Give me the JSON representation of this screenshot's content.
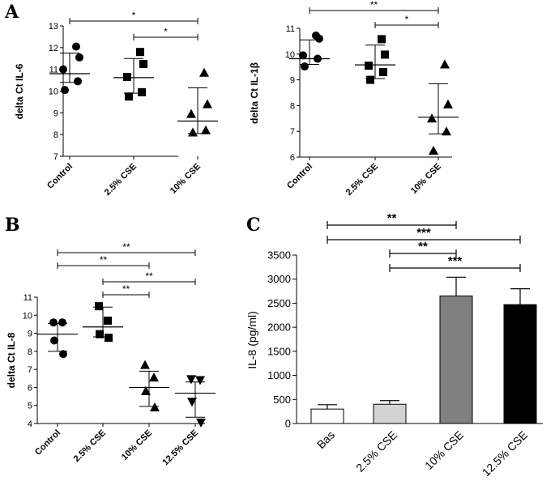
{
  "chart_data": [
    {
      "panel": "A",
      "type": "scatter",
      "ylabel": "delta Ct IL-6",
      "ylim": [
        7,
        13
      ],
      "yticks": [
        7,
        8,
        9,
        10,
        11,
        12,
        13
      ],
      "categories": [
        "Control",
        "2.5% CSE",
        "10% CSE"
      ],
      "markers": [
        "circle",
        "square",
        "triangle"
      ],
      "points": [
        [
          12.05,
          11.55,
          11.0,
          10.45,
          10.05
        ],
        [
          11.8,
          11.25,
          10.65,
          9.95,
          9.75
        ],
        [
          10.85,
          9.4,
          8.95,
          8.2,
          8.1
        ]
      ],
      "mean": [
        10.8,
        10.62,
        8.62
      ],
      "sd_upper": [
        11.75,
        11.5,
        10.15
      ],
      "sd_lower": [
        10.4,
        9.9,
        8.05
      ],
      "significance": [
        {
          "from": 0,
          "to": 2,
          "label": "*"
        },
        {
          "from": 1,
          "to": 2,
          "label": "*"
        }
      ]
    },
    {
      "panel": "",
      "type": "scatter",
      "ylabel": "delta Ct IL-1β",
      "ylim": [
        6,
        11
      ],
      "yticks": [
        6,
        7,
        8,
        9,
        10,
        11
      ],
      "categories": [
        "Control",
        "2.5% CSE",
        "10% CSE"
      ],
      "markers": [
        "circle",
        "square",
        "triangle"
      ],
      "points": [
        [
          10.72,
          10.6,
          9.95,
          9.82,
          9.52
        ],
        [
          10.58,
          9.98,
          9.55,
          9.3,
          9.0
        ],
        [
          9.6,
          8.05,
          7.5,
          7.0,
          6.25
        ]
      ],
      "mean": [
        9.82,
        9.58,
        7.55
      ],
      "sd_upper": [
        10.55,
        10.35,
        8.85
      ],
      "sd_lower": [
        9.6,
        9.05,
        6.9
      ],
      "significance": [
        {
          "from": 0,
          "to": 2,
          "label": "**"
        },
        {
          "from": 1,
          "to": 2,
          "label": "*"
        }
      ]
    },
    {
      "panel": "B",
      "type": "scatter",
      "ylabel": "delta Ct IL-8",
      "ylim": [
        4,
        11
      ],
      "yticks": [
        4,
        5,
        6,
        7,
        8,
        9,
        10,
        11
      ],
      "categories": [
        "Control",
        "2.5% CSE",
        "10% CSE",
        "12.5% CSE"
      ],
      "markers": [
        "circle",
        "square",
        "triangle",
        "inverted-triangle"
      ],
      "points": [
        [
          9.6,
          9.6,
          8.6,
          7.85
        ],
        [
          10.5,
          9.7,
          8.95,
          8.75
        ],
        [
          7.25,
          6.55,
          5.8,
          4.9
        ],
        [
          6.45,
          6.4,
          5.2,
          4.05
        ]
      ],
      "mean": [
        8.95,
        9.35,
        6.0,
        5.68
      ],
      "sd_upper": [
        9.55,
        10.45,
        6.9,
        6.3
      ],
      "sd_lower": [
        8.0,
        8.8,
        4.95,
        4.35
      ],
      "significance": [
        {
          "from": 0,
          "to": 3,
          "label": "**"
        },
        {
          "from": 0,
          "to": 2,
          "label": "**"
        },
        {
          "from": 1,
          "to": 3,
          "label": "**"
        },
        {
          "from": 1,
          "to": 2,
          "label": "**"
        }
      ]
    },
    {
      "panel": "C",
      "type": "bar",
      "ylabel": "IL-8 (pg/ml)",
      "ylim": [
        0,
        3500
      ],
      "yticks": [
        0,
        500,
        1000,
        1500,
        2000,
        2500,
        3000,
        3500
      ],
      "categories": [
        "Bas",
        "2.5% CSE",
        "10% CSE",
        "12.5% CSE"
      ],
      "values": [
        300,
        400,
        2650,
        2470
      ],
      "errors": [
        90,
        75,
        390,
        330
      ],
      "bar_colors": [
        "#ffffff",
        "#d3d3d3",
        "#808080",
        "#000000"
      ],
      "significance": [
        {
          "from": 0,
          "to": 2,
          "label": "**"
        },
        {
          "from": 0,
          "to": 3,
          "label": "***"
        },
        {
          "from": 1,
          "to": 2,
          "label": "**"
        },
        {
          "from": 1,
          "to": 3,
          "label": "***"
        }
      ]
    }
  ]
}
